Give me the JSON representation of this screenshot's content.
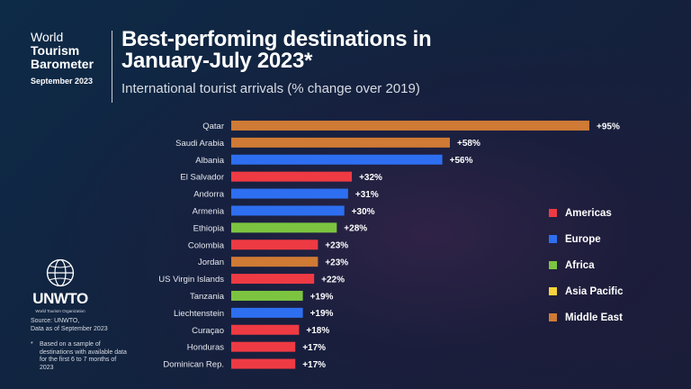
{
  "brand": {
    "line1": "World",
    "line2": "Tourism",
    "line3": "Barometer",
    "date": "September 2023"
  },
  "title": {
    "line1": "Best-perfoming destinations in",
    "line2": "January-July 2023*"
  },
  "subtitle": "International tourist arrivals (% change over 2019)",
  "logo": {
    "name": "UNWTO",
    "sub": "World Tourism Organization"
  },
  "source": {
    "line1": "Source: UNWTO,",
    "line2": "Data as of September 2023"
  },
  "note": {
    "symbol": "*",
    "text": "Based on a sample of destinations with available data for the first 6 to 7 months of 2023"
  },
  "colors": {
    "Americas": "#ee3a43",
    "Europe": "#2d6ff0",
    "Africa": "#7cc440",
    "Asia Pacific": "#f7d33b",
    "Middle East": "#cf7a35"
  },
  "legend": [
    "Americas",
    "Europe",
    "Africa",
    "Asia Pacific",
    "Middle East"
  ],
  "chart_data": {
    "type": "bar",
    "orientation": "horizontal",
    "title": "Best-perfoming destinations in January-July 2023*",
    "subtitle": "International tourist arrivals (% change over 2019)",
    "categories": [
      "Qatar",
      "Saudi Arabia",
      "Albania",
      "El Salvador",
      "Andorra",
      "Armenia",
      "Ethiopia",
      "Colombia",
      "Jordan",
      "US Virgin Islands",
      "Tanzania",
      "Liechtenstein",
      "Curaçao",
      "Honduras",
      "Dominican Rep."
    ],
    "values": [
      95,
      58,
      56,
      32,
      31,
      30,
      28,
      23,
      23,
      22,
      19,
      19,
      18,
      17,
      17
    ],
    "labels": [
      "+95%",
      "+58%",
      "+56%",
      "+32%",
      "+31%",
      "+30%",
      "+28%",
      "+23%",
      "+23%",
      "+22%",
      "+19%",
      "+19%",
      "+18%",
      "+17%",
      "+17%"
    ],
    "regions": [
      "Middle East",
      "Middle East",
      "Europe",
      "Americas",
      "Europe",
      "Europe",
      "Africa",
      "Americas",
      "Middle East",
      "Americas",
      "Africa",
      "Europe",
      "Americas",
      "Americas",
      "Americas"
    ],
    "xlim": [
      0,
      100
    ],
    "grid": false,
    "legend_position": "right"
  }
}
